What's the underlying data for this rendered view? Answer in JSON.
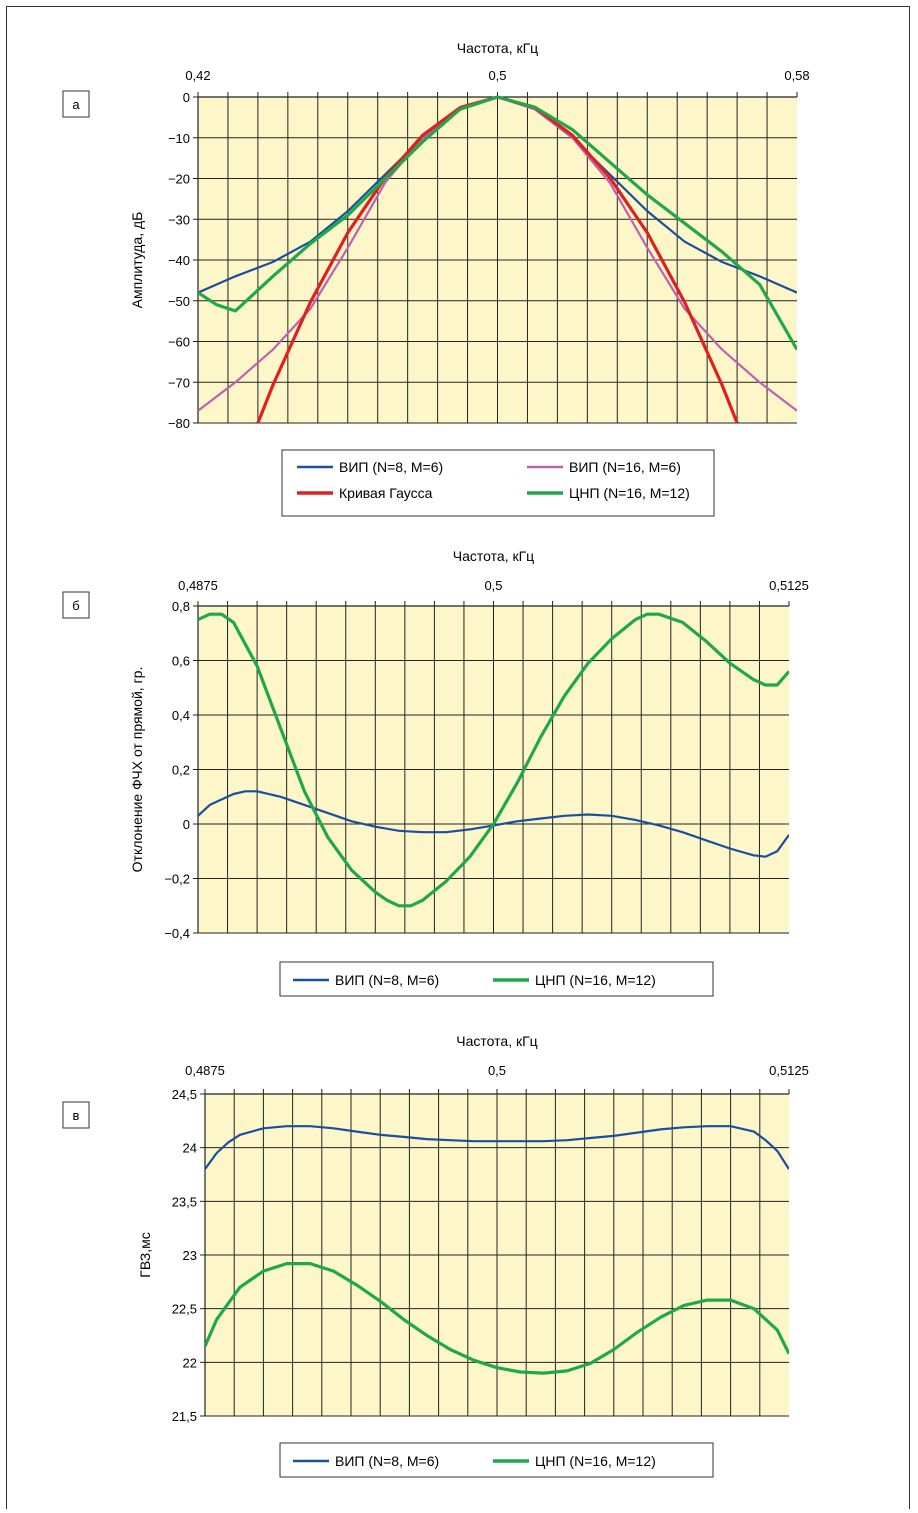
{
  "chart_data": [
    {
      "panel_label": "а",
      "type": "line",
      "xlabel": "Частота, кГц",
      "ylabel": "Амплитуда, дБ",
      "xlim": [
        0.42,
        0.58
      ],
      "ylim": [
        -80,
        0
      ],
      "x_ticks": [
        "0,42",
        "0,5",
        "0,58"
      ],
      "y_ticks": [
        "0",
        "−10",
        "−20",
        "−30",
        "−40",
        "−50",
        "−60",
        "−70",
        "−80"
      ],
      "grid": true,
      "legend_position": "bottom",
      "series": [
        {
          "name": "ВИП (N=8, M=6)",
          "color": "#1a4fa0",
          "x": [
            0.42,
            0.43,
            0.44,
            0.45,
            0.46,
            0.47,
            0.48,
            0.49,
            0.5,
            0.51,
            0.52,
            0.53,
            0.54,
            0.55,
            0.56,
            0.57,
            0.58
          ],
          "y": [
            -48,
            -44,
            -40.5,
            -35.5,
            -28,
            -19,
            -10,
            -3,
            0,
            -3,
            -10,
            -19,
            -28,
            -35.5,
            -40.5,
            -44,
            -48
          ]
        },
        {
          "name": "ВИП (N=16, M=6)",
          "color": "#c060b0",
          "x": [
            0.42,
            0.43,
            0.44,
            0.45,
            0.46,
            0.47,
            0.48,
            0.49,
            0.5,
            0.51,
            0.52,
            0.53,
            0.54,
            0.55,
            0.56,
            0.57,
            0.58
          ],
          "y": [
            -77,
            -70,
            -62,
            -52,
            -37,
            -21,
            -10,
            -3,
            0,
            -3,
            -10,
            -21,
            -37,
            -52,
            -62,
            -70,
            -77
          ]
        },
        {
          "name": "Кривая Гаусса",
          "color": "#e02020",
          "x": [
            0.436,
            0.44,
            0.45,
            0.46,
            0.47,
            0.48,
            0.49,
            0.5,
            0.51,
            0.52,
            0.53,
            0.54,
            0.55,
            0.56,
            0.564
          ],
          "y": [
            -80,
            -70.7,
            -50.4,
            -33.3,
            -19.8,
            -9.4,
            -2.6,
            0,
            -2.6,
            -9.4,
            -19.8,
            -33.3,
            -50.4,
            -70.7,
            -80
          ]
        },
        {
          "name": "ЦНП (N=16, M=12)",
          "color": "#1fa84a",
          "x": [
            0.42,
            0.425,
            0.43,
            0.44,
            0.45,
            0.46,
            0.47,
            0.48,
            0.49,
            0.5,
            0.51,
            0.52,
            0.53,
            0.54,
            0.55,
            0.56,
            0.57,
            0.58
          ],
          "y": [
            -48,
            -51,
            -52.5,
            -44,
            -36,
            -29,
            -20,
            -11,
            -3,
            0,
            -2.5,
            -8,
            -16,
            -24,
            -31,
            -38,
            -46,
            -62
          ]
        }
      ]
    },
    {
      "panel_label": "б",
      "type": "line",
      "xlabel": "Частота, кГц",
      "ylabel": "Отклонение ФЧХ от прямой, гр.",
      "xlim": [
        0.4875,
        0.5125
      ],
      "ylim": [
        -0.4,
        0.8
      ],
      "x_ticks": [
        "0,4875",
        "0,5",
        "0,5125"
      ],
      "y_ticks": [
        "0,8",
        "0,6",
        "0,4",
        "0,2",
        "0",
        "−0,2",
        "−0,4"
      ],
      "grid": true,
      "legend_position": "bottom",
      "series": [
        {
          "name": "ВИП (N=8, M=6)",
          "color": "#1a4fa0",
          "x": [
            0.4875,
            0.488,
            0.489,
            0.4895,
            0.49,
            0.491,
            0.492,
            0.493,
            0.494,
            0.495,
            0.496,
            0.497,
            0.498,
            0.499,
            0.5,
            0.501,
            0.502,
            0.503,
            0.504,
            0.505,
            0.506,
            0.507,
            0.508,
            0.509,
            0.51,
            0.511,
            0.5115,
            0.512,
            0.5125
          ],
          "y": [
            0.03,
            0.07,
            0.11,
            0.12,
            0.12,
            0.1,
            0.07,
            0.04,
            0.01,
            -0.01,
            -0.025,
            -0.03,
            -0.03,
            -0.02,
            -0.005,
            0.01,
            0.02,
            0.03,
            0.035,
            0.03,
            0.015,
            -0.005,
            -0.03,
            -0.06,
            -0.09,
            -0.115,
            -0.12,
            -0.1,
            -0.04
          ]
        },
        {
          "name": "ЦНП (N=16, M=12)",
          "color": "#1fa84a",
          "x": [
            0.4875,
            0.488,
            0.4885,
            0.489,
            0.49,
            0.491,
            0.492,
            0.493,
            0.494,
            0.495,
            0.4955,
            0.496,
            0.4965,
            0.497,
            0.498,
            0.499,
            0.5,
            0.501,
            0.502,
            0.503,
            0.504,
            0.505,
            0.506,
            0.5065,
            0.507,
            0.508,
            0.509,
            0.51,
            0.511,
            0.5115,
            0.512,
            0.5125
          ],
          "y": [
            0.75,
            0.77,
            0.77,
            0.74,
            0.58,
            0.35,
            0.12,
            -0.05,
            -0.17,
            -0.25,
            -0.28,
            -0.3,
            -0.3,
            -0.28,
            -0.21,
            -0.12,
            0.0,
            0.15,
            0.32,
            0.47,
            0.59,
            0.68,
            0.75,
            0.77,
            0.77,
            0.74,
            0.67,
            0.59,
            0.53,
            0.51,
            0.51,
            0.56
          ]
        }
      ]
    },
    {
      "panel_label": "в",
      "type": "line",
      "xlabel": "Частота, кГц",
      "ylabel": "ГВЗ,мс",
      "xlim": [
        0.4875,
        0.5125
      ],
      "ylim": [
        21.5,
        24.5
      ],
      "x_ticks": [
        "0,4875",
        "0,5",
        "0,5125"
      ],
      "y_ticks": [
        "24,5",
        "24",
        "23,5",
        "23",
        "22,5",
        "22",
        "21,5"
      ],
      "grid": true,
      "legend_position": "bottom",
      "series": [
        {
          "name": "ВИП (N=8, M=6)",
          "color": "#1a4fa0",
          "x": [
            0.4875,
            0.488,
            0.4885,
            0.489,
            0.49,
            0.491,
            0.492,
            0.493,
            0.494,
            0.495,
            0.496,
            0.497,
            0.498,
            0.499,
            0.5,
            0.501,
            0.502,
            0.503,
            0.504,
            0.505,
            0.506,
            0.507,
            0.508,
            0.509,
            0.51,
            0.511,
            0.5115,
            0.512,
            0.5125
          ],
          "y": [
            23.8,
            23.95,
            24.05,
            24.12,
            24.18,
            24.2,
            24.2,
            24.18,
            24.15,
            24.12,
            24.1,
            24.08,
            24.07,
            24.06,
            24.06,
            24.06,
            24.06,
            24.07,
            24.09,
            24.11,
            24.14,
            24.17,
            24.19,
            24.2,
            24.2,
            24.15,
            24.07,
            23.97,
            23.8
          ]
        },
        {
          "name": "ЦНП (N=16, M=12)",
          "color": "#1fa84a",
          "x": [
            0.4875,
            0.488,
            0.489,
            0.49,
            0.491,
            0.492,
            0.493,
            0.494,
            0.495,
            0.496,
            0.497,
            0.498,
            0.499,
            0.5,
            0.501,
            0.502,
            0.503,
            0.504,
            0.505,
            0.506,
            0.507,
            0.508,
            0.509,
            0.51,
            0.511,
            0.512,
            0.5125
          ],
          "y": [
            22.15,
            22.4,
            22.7,
            22.85,
            22.92,
            22.92,
            22.85,
            22.72,
            22.57,
            22.4,
            22.25,
            22.12,
            22.02,
            21.95,
            21.91,
            21.9,
            21.92,
            21.99,
            22.12,
            22.28,
            22.42,
            22.53,
            22.58,
            22.58,
            22.5,
            22.3,
            22.08
          ]
        }
      ]
    }
  ]
}
